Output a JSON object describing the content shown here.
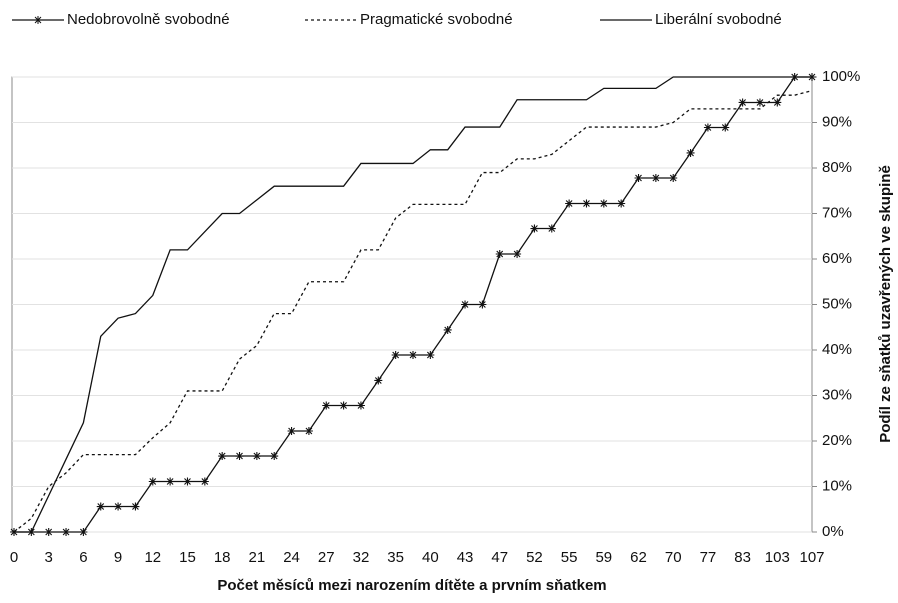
{
  "chart_data": {
    "type": "line",
    "xlabel": "Počet měsíců mezi narozením dítěte a prvním sňatkem",
    "ylabel": "Podíl ze sňatků uzavřených ve skupině",
    "categories": [
      "0",
      null,
      "3",
      null,
      "6",
      null,
      "9",
      null,
      "12",
      null,
      "15",
      null,
      "18",
      null,
      "21",
      null,
      "24",
      null,
      "27",
      null,
      "32",
      null,
      "35",
      null,
      "40",
      null,
      "43",
      null,
      "47",
      null,
      "52",
      null,
      "55",
      null,
      "59",
      null,
      "62",
      null,
      "70",
      null,
      "77",
      null,
      "83",
      null,
      "103",
      null,
      "107"
    ],
    "ylim": [
      0,
      100
    ],
    "yticks": [
      {
        "value": 0,
        "label": "0%"
      },
      {
        "value": 10,
        "label": "10%"
      },
      {
        "value": 20,
        "label": "20%"
      },
      {
        "value": 30,
        "label": "30%"
      },
      {
        "value": 40,
        "label": "40%"
      },
      {
        "value": 50,
        "label": "50%"
      },
      {
        "value": 60,
        "label": "60%"
      },
      {
        "value": 70,
        "label": "70%"
      },
      {
        "value": 80,
        "label": "80%"
      },
      {
        "value": 90,
        "label": "90%"
      },
      {
        "value": 100,
        "label": "100%"
      }
    ],
    "y_axis_side": "right",
    "grid": true,
    "legend": "top",
    "series": [
      {
        "name": "Nedobrovolně svobodné",
        "color": "#111111",
        "dash": "solid",
        "marker": "star",
        "values": [
          0,
          0,
          0,
          0,
          0,
          5.6,
          5.6,
          5.6,
          11.1,
          11.1,
          11.1,
          11.1,
          16.7,
          16.7,
          16.7,
          16.7,
          22.2,
          22.2,
          27.8,
          27.8,
          27.8,
          33.3,
          38.9,
          38.9,
          38.9,
          44.4,
          50,
          50,
          61.1,
          61.1,
          66.7,
          66.7,
          72.2,
          72.2,
          72.2,
          72.2,
          77.8,
          77.8,
          77.8,
          83.3,
          88.9,
          88.9,
          94.4,
          94.4,
          94.4,
          100,
          100
        ]
      },
      {
        "name": "Pragmatické svobodné",
        "color": "#111111",
        "dash": "dotted",
        "marker": "none",
        "values": [
          0,
          3,
          10,
          13,
          17,
          17,
          17,
          17,
          20.7,
          24,
          31,
          31,
          31,
          38,
          41,
          48,
          48,
          55,
          55,
          55,
          62,
          62,
          69,
          72,
          72,
          72,
          72,
          79,
          79,
          82,
          82,
          83,
          86,
          89,
          89,
          89,
          89,
          89,
          90,
          93,
          93,
          93,
          93,
          93,
          96,
          96,
          97
        ]
      },
      {
        "name": "Liberální svobodné",
        "color": "#111111",
        "dash": "solid",
        "marker": "none",
        "values": [
          0,
          0,
          8,
          16,
          24,
          43,
          47,
          48,
          52,
          62,
          62,
          66,
          70,
          70,
          73,
          76,
          76,
          76,
          76,
          76,
          81,
          81,
          81,
          81,
          84,
          84,
          89,
          89,
          89,
          95,
          95,
          95,
          95,
          95,
          97.5,
          97.5,
          97.5,
          97.5,
          100,
          100,
          100,
          100,
          100,
          100,
          100,
          100,
          100
        ]
      }
    ]
  }
}
